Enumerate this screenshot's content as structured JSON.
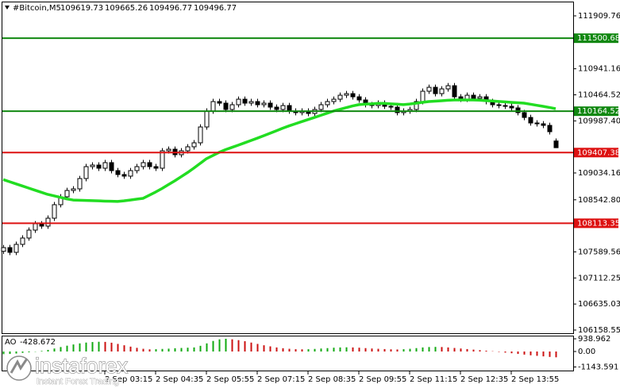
{
  "header": {
    "symbol": "#Bitcoin,M5"
  },
  "watermark": {
    "brand": "instaforex",
    "tagline": "Instant Forex Trading"
  },
  "chart_data": [
    {
      "type": "candlestick",
      "categories": [
        null,
        null,
        null,
        null,
        null,
        null,
        null,
        null,
        null,
        null,
        null,
        null,
        null,
        null,
        null,
        null,
        "2 Sep 03:15",
        null,
        null,
        null,
        null,
        null,
        null,
        null,
        "2 Sep 04:35",
        null,
        null,
        null,
        null,
        null,
        null,
        null,
        "2 Sep 05:55",
        null,
        null,
        null,
        null,
        null,
        null,
        null,
        "2 Sep 07:15",
        null,
        null,
        null,
        null,
        null,
        null,
        null,
        "2 Sep 08:35",
        null,
        null,
        null,
        null,
        null,
        null,
        null,
        "2 Sep 09:55",
        null,
        null,
        null,
        null,
        null,
        null,
        null,
        "2 Sep 11:15",
        null,
        null,
        null,
        null,
        null,
        null,
        null,
        "2 Sep 12:35",
        null,
        null,
        null,
        null,
        null,
        null,
        null,
        "2 Sep 13:55",
        null,
        null,
        null,
        null,
        null,
        null,
        null
      ],
      "open": [
        107600,
        107668,
        107581,
        107727,
        107843,
        107988,
        108104,
        108061,
        108206,
        108453,
        108598,
        108714,
        108743,
        108932,
        109150,
        109179,
        109121,
        109223,
        109077,
        109005,
        108976,
        109077,
        109150,
        109223,
        109150,
        109121,
        109440,
        109469,
        109368,
        109440,
        109513,
        109586,
        109876,
        110167,
        110341,
        110312,
        110196,
        110283,
        110384,
        110312,
        110341,
        110283,
        110312,
        110239,
        110196,
        110268,
        110167,
        110138,
        110167,
        110123,
        110196,
        110283,
        110341,
        110384,
        110457,
        110486,
        110428,
        110370,
        110283,
        110268,
        110312,
        110254,
        110239,
        110138,
        110167,
        110196,
        110341,
        110530,
        110602,
        110486,
        110573,
        110631,
        110428,
        110384,
        110457,
        110399,
        110428,
        110341,
        110283,
        110268,
        110254,
        110225,
        110138,
        110050,
        109949,
        109934,
        109905,
        109619.73
      ],
      "high": [
        107718,
        107718,
        107777,
        107893,
        108038,
        108154,
        108154,
        108256,
        108503,
        108648,
        108764,
        108793,
        108982,
        109200,
        109229,
        109229,
        109273,
        109273,
        109127,
        109055,
        109127,
        109200,
        109273,
        109273,
        109200,
        109490,
        109519,
        109519,
        109490,
        109563,
        109636,
        109926,
        110217,
        110391,
        110391,
        110362,
        110333,
        110434,
        110434,
        110391,
        110391,
        110362,
        110362,
        110289,
        110318,
        110318,
        110217,
        110217,
        110217,
        110246,
        110333,
        110391,
        110434,
        110507,
        110536,
        110536,
        110478,
        110420,
        110333,
        110362,
        110362,
        110304,
        110289,
        110217,
        110246,
        110391,
        110580,
        110652,
        110652,
        110623,
        110681,
        110681,
        110478,
        110507,
        110507,
        110478,
        110478,
        110391,
        110333,
        110318,
        110304,
        110275,
        110188,
        110100,
        109999,
        109984,
        109955,
        109665.26
      ],
      "low": [
        107550,
        107531,
        107531,
        107677,
        107793,
        107938,
        108011,
        108011,
        108156,
        108403,
        108548,
        108664,
        108693,
        108882,
        109100,
        109071,
        109071,
        109027,
        108955,
        108926,
        108926,
        109027,
        109100,
        109100,
        109071,
        109071,
        109390,
        109318,
        109318,
        109390,
        109463,
        109536,
        109826,
        110117,
        110262,
        110146,
        110146,
        110233,
        110262,
        110262,
        110233,
        110233,
        110189,
        110146,
        110146,
        110117,
        110088,
        110088,
        110073,
        110073,
        110146,
        110233,
        110291,
        110334,
        110407,
        110378,
        110320,
        110233,
        110218,
        110218,
        110204,
        110189,
        110088,
        110088,
        110117,
        110146,
        110291,
        110480,
        110436,
        110436,
        110523,
        110378,
        110334,
        110334,
        110349,
        110349,
        110291,
        110233,
        110218,
        110204,
        110175,
        110088,
        110000,
        109899,
        109884,
        109855,
        109739,
        109496.77
      ],
      "close": [
        107668,
        107581,
        107727,
        107843,
        107988,
        108104,
        108061,
        108206,
        108453,
        108598,
        108714,
        108743,
        108932,
        109150,
        109179,
        109121,
        109223,
        109077,
        109005,
        108976,
        109077,
        109150,
        109223,
        109150,
        109121,
        109440,
        109469,
        109368,
        109440,
        109513,
        109586,
        109876,
        110167,
        110341,
        110312,
        110196,
        110283,
        110384,
        110312,
        110341,
        110283,
        110312,
        110239,
        110196,
        110268,
        110167,
        110138,
        110167,
        110123,
        110196,
        110283,
        110341,
        110384,
        110457,
        110486,
        110428,
        110370,
        110283,
        110268,
        110312,
        110254,
        110239,
        110138,
        110167,
        110196,
        110341,
        110530,
        110602,
        110486,
        110573,
        110631,
        110428,
        110384,
        110457,
        110399,
        110428,
        110341,
        110283,
        110268,
        110254,
        110225,
        110138,
        110050,
        109949,
        109934,
        109905,
        109789,
        109496.77
      ],
      "up_color": "#ffffff",
      "down_color": "#000000",
      "series": [
        {
          "color": "#22dd22",
          "values": [
            108913,
            108874,
            108835,
            108797,
            108758,
            108719,
            108681,
            108642,
            108615,
            108588,
            108560,
            108539,
            108535,
            108531,
            108527,
            108523,
            108519,
            108516,
            108512,
            108523,
            108538,
            108554,
            108569,
            108627,
            108685,
            108749,
            108819,
            108889,
            108964,
            109039,
            109121,
            109208,
            109295,
            109353,
            109411,
            109460,
            109501,
            109542,
            109585,
            109627,
            109670,
            109714,
            109760,
            109806,
            109853,
            109895,
            109934,
            109973,
            110011,
            110050,
            110089,
            110128,
            110167,
            110198,
            110229,
            110260,
            110285,
            110293,
            110300,
            110308,
            110308,
            110300,
            110293,
            110285,
            110295,
            110310,
            110326,
            110341,
            110349,
            110356,
            110364,
            110370,
            110370,
            110370,
            110370,
            110366,
            110358,
            110351,
            110343,
            110335,
            110327,
            110320,
            110312,
            110293,
            110273,
            110254,
            110233,
            110210
          ]
        }
      ],
      "levels": [
        {
          "value": 111500.68,
          "color": "#118811"
        },
        {
          "value": 110164.52,
          "color": "#118811"
        },
        {
          "value": 109407.38,
          "color": "#dd1111"
        },
        {
          "value": 108113.35,
          "color": "#dd1111"
        }
      ],
      "ylim": [
        106100,
        112200
      ],
      "yticks": [
        111909.76,
        110941.16,
        110464.52,
        {
          "value": 109987.4,
          "label": "109987.40"
        },
        109034.16,
        {
          "value": 108542.8,
          "label": "108542.80"
        },
        107589.56,
        107112.25,
        106635.03,
        106158.55
      ]
    },
    {
      "type": "bar",
      "title": "AO",
      "up_color": "#11aa11",
      "down_color": "#cc1111",
      "values": [
        -200,
        -180,
        -150,
        -100,
        -60,
        -20,
        40,
        120,
        220,
        330,
        430,
        520,
        600,
        660,
        700,
        720,
        710,
        650,
        560,
        460,
        360,
        270,
        200,
        160,
        170,
        190,
        210,
        240,
        260,
        280,
        300,
        420,
        600,
        780,
        900,
        940,
        900,
        840,
        760,
        660,
        560,
        460,
        380,
        300,
        240,
        200,
        170,
        160,
        170,
        190,
        220,
        250,
        280,
        300,
        310,
        300,
        280,
        250,
        220,
        200,
        180,
        160,
        150,
        170,
        200,
        250,
        300,
        330,
        340,
        330,
        300,
        260,
        220,
        180,
        140,
        100,
        60,
        20,
        -30,
        -80,
        -130,
        -180,
        -230,
        -280,
        -320,
        -360,
        -400,
        -428.672
      ],
      "ylim": [
        -1467,
        1173
      ],
      "yticks": [
        938.962,
        {
          "value": 0,
          "label": "0.00"
        },
        -1143.591
      ]
    }
  ]
}
